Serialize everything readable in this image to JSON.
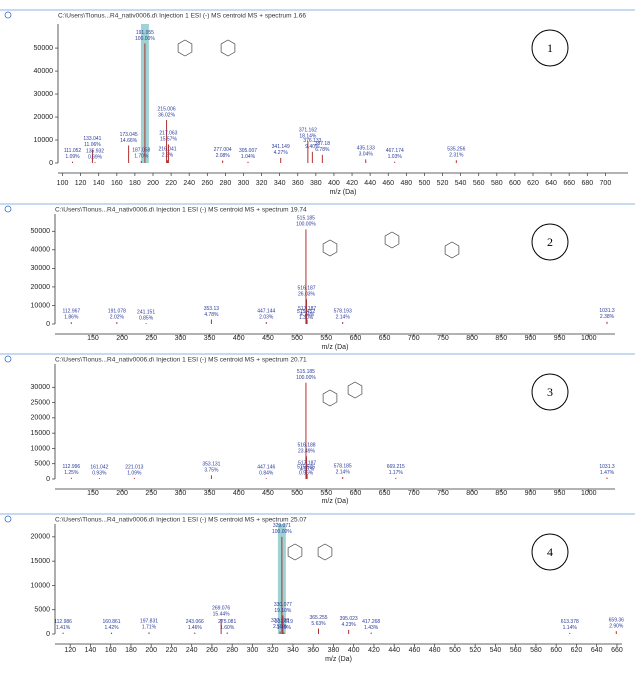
{
  "chart_data": [
    {
      "type": "spectrum",
      "title": "C:\\Users\\Tlonus...R4_nativ0006.d\\ Injection 1 ESI (-) MS centroid MS + spectrum 1.66",
      "xlabel": "m/z (Da)",
      "panel_label": "1",
      "color": "#b03030",
      "label_color": "#2a3a9a",
      "highlight": true,
      "x": [
        111.052,
        133.041,
        135.932,
        173.045,
        187.058,
        191.055,
        215.006,
        216.041,
        217.063,
        277.004,
        305.007,
        341.149,
        371.162,
        376.133,
        387.18,
        435.133,
        467.174,
        535.256
      ],
      "values": [
        570,
        5750,
        360,
        7620,
        880,
        52000,
        18700,
        1200,
        8100,
        1080,
        540,
        2220,
        9430,
        4890,
        3530,
        1580,
        540,
        1200
      ],
      "percent_labels": [
        "1.09%",
        "11.06%",
        "0.69%",
        "14.66%",
        "1.70%",
        "100.00%",
        "36.02%",
        "2.3%",
        "15.57%",
        "2.08%",
        "1.04%",
        "4.27%",
        "18.14%",
        "9.40%",
        "6.78%",
        "3.04%",
        "1.03%",
        "2.31%"
      ],
      "xlim": [
        95,
        725
      ],
      "ylim": [
        0,
        57000
      ],
      "xticks": [
        100,
        120,
        140,
        160,
        180,
        200,
        220,
        240,
        260,
        280,
        300,
        320,
        340,
        360,
        380,
        400,
        420,
        440,
        460,
        480,
        500,
        520,
        540,
        560,
        580,
        600,
        620,
        640,
        660,
        680,
        700
      ],
      "yticks": [
        0,
        10000,
        20000,
        30000,
        40000,
        50000
      ]
    },
    {
      "type": "spectrum",
      "title": "C:\\Users\\Tlonus...R4_nativ0006.d\\ Injection 1 ESI (-) MS centroid MS + spectrum 19.74",
      "xlabel": "m/z (Da)",
      "panel_label": "2",
      "color": "#b03030",
      "label_color": "#2a3a9a",
      "highlight": false,
      "x": [
        112.967,
        191.078,
        241.151,
        353.13,
        447.144,
        515.452,
        515.185,
        516.187,
        517.187,
        578.193,
        1031.3
      ],
      "values": [
        950,
        1030,
        430,
        2440,
        1040,
        660,
        51000,
        13300,
        2420,
        1090,
        1210
      ],
      "percent_labels": [
        "1.86%",
        "2.02%",
        "0.85%",
        "4.78%",
        "2.03%",
        "1.30%",
        "100.00%",
        "26.03%",
        "4.74%",
        "2.14%",
        "2.38%"
      ],
      "xlim": [
        85,
        1045
      ],
      "ylim": [
        0,
        55000
      ],
      "xticks": [
        150,
        200,
        250,
        300,
        350,
        400,
        450,
        500,
        550,
        600,
        650,
        700,
        750,
        800,
        850,
        900,
        950,
        1000
      ],
      "yticks": [
        0,
        10000,
        20000,
        30000,
        40000,
        50000
      ]
    },
    {
      "type": "spectrum",
      "title": "C:\\Users\\Tlonus...R4_nativ0006.d\\ Injection 1 ESI (-) MS centroid MS + spectrum 20.71",
      "xlabel": "m/z (Da)",
      "panel_label": "3",
      "color": "#b03030",
      "label_color": "#2a3a9a",
      "highlight": false,
      "x": [
        112.996,
        161.042,
        221.013,
        353.131,
        447.146,
        515.505,
        515.185,
        516.188,
        517.187,
        578.185,
        669.215,
        1031.3
      ],
      "values": [
        390,
        290,
        340,
        1180,
        260,
        300,
        31500,
        7400,
        1570,
        670,
        370,
        460
      ],
      "percent_labels": [
        "1.25%",
        "0.93%",
        "1.09%",
        "3.75%",
        "0.84%",
        "0.96%",
        "100.00%",
        "23.49%",
        "4.97%",
        "2.14%",
        "1.17%",
        "1.47%"
      ],
      "xlim": [
        85,
        1045
      ],
      "ylim": [
        0,
        35000
      ],
      "xticks": [
        150,
        200,
        250,
        300,
        350,
        400,
        450,
        500,
        550,
        600,
        650,
        700,
        750,
        800,
        850,
        900,
        950,
        1000
      ],
      "yticks": [
        0,
        5000,
        10000,
        15000,
        20000,
        25000,
        30000
      ]
    },
    {
      "type": "spectrum",
      "title": "C:\\Users\\Tlonus...R4_nativ0006.d\\ Injection 1 ESI (-) MS centroid MS + spectrum 25.07",
      "xlabel": "m/z (Da)",
      "panel_label": "4",
      "color": "#b03030",
      "label_color": "#2a3a9a",
      "highlight": true,
      "x": [
        112.986,
        160.861,
        197.831,
        243.066,
        269.076,
        275.081,
        327.298,
        329.071,
        330.077,
        331.019,
        365.255,
        395.023,
        417.268,
        613.378,
        659.36
      ],
      "values": [
        280,
        280,
        340,
        290,
        3090,
        320,
        520,
        20000,
        3820,
        300,
        1130,
        850,
        290,
        230,
        580
      ],
      "percent_labels": [
        "1.41%",
        "1.42%",
        "1.71%",
        "1.46%",
        "15.44%",
        "1.60%",
        "2.58%",
        "100.00%",
        "19.10%",
        "1.49%",
        "5.63%",
        "4.23%",
        "1.43%",
        "1.14%",
        "2.90%"
      ],
      "xlim": [
        105,
        665
      ],
      "ylim": [
        0,
        21000
      ],
      "xticks": [
        120,
        140,
        160,
        180,
        200,
        220,
        240,
        260,
        280,
        300,
        320,
        340,
        360,
        380,
        400,
        420,
        440,
        460,
        480,
        500,
        520,
        540,
        560,
        580,
        600,
        620,
        640,
        660
      ],
      "yticks": [
        0,
        5000,
        10000,
        15000,
        20000
      ]
    }
  ]
}
